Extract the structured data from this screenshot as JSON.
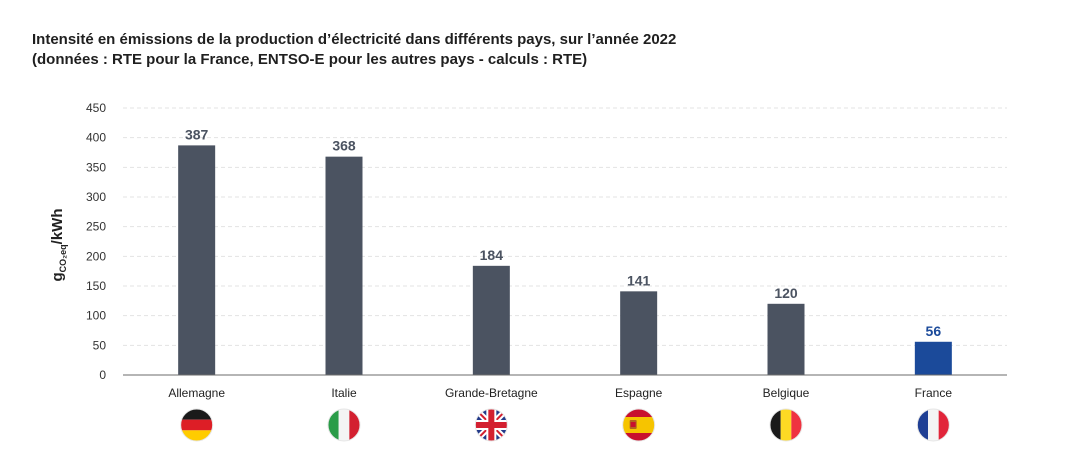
{
  "title_lines": [
    "Intensité en émissions de la production d’électricité dans différents pays, sur l’année 2022",
    "(données : RTE pour la France, ENTSO-E pour les autres pays - calculs : RTE)"
  ],
  "chart_data": {
    "type": "bar",
    "title": "Intensité en émissions de la production d’électricité dans différents pays, sur l’année 2022",
    "subtitle": "(données : RTE pour la France, ENTSO-E pour les autres pays - calculs : RTE)",
    "ylabel": {
      "base": "g",
      "subscript": "CO₂eq",
      "suffix": "/kWh"
    },
    "xlabel": "",
    "categories": [
      "Allemagne",
      "Italie",
      "Grande-Bretagne",
      "Espagne",
      "Belgique",
      "France"
    ],
    "values": [
      387,
      368,
      184,
      141,
      120,
      56
    ],
    "ylim": [
      0,
      450
    ],
    "yticks": [
      0,
      50,
      100,
      150,
      200,
      250,
      300,
      350,
      400,
      450
    ],
    "grid": true,
    "bar_colors": [
      "#4b5361",
      "#4b5361",
      "#4b5361",
      "#4b5361",
      "#4b5361",
      "#1b4a9a"
    ],
    "label_colors": [
      "#4b5361",
      "#4b5361",
      "#4b5361",
      "#4b5361",
      "#4b5361",
      "#1b4a9a"
    ],
    "flags": [
      "germany-flag-icon",
      "italy-flag-icon",
      "united-kingdom-flag-icon",
      "spain-flag-icon",
      "belgium-flag-icon",
      "france-flag-icon"
    ]
  }
}
